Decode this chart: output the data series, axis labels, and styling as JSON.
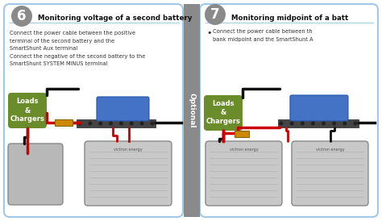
{
  "bg_color": "#FFFFFF",
  "border_color_left": "#A0C8E8",
  "border_color_right": "#A0C8E8",
  "optional_bg": "#8A8A8A",
  "optional_text": "Optional",
  "number6": "6",
  "number7": "7",
  "circle_bg": "#8A8A8A",
  "title6": "Monitoring voltage of a second battery",
  "title7": "Monitoring midpoint of a batt",
  "desc6": [
    "Connect the power cable between the positive",
    "terminal of the second battery and the",
    "SmartShunt Aux terminal",
    "Connect the negative of the second battery to the",
    "SmartShunt SYSTEM MINUS terminal"
  ],
  "desc7_bullet": "•",
  "desc7": [
    "Connect the power cable between th",
    "bank midpoint and the SmartShunt A"
  ],
  "loads_bg": "#6B8C2A",
  "loads_lines": [
    "Loads",
    "&",
    "Chargers"
  ],
  "shunt_body": "#4472C4",
  "shunt_bar": "#444444",
  "shunt_connector": "#CC8800",
  "battery_face": "#C0C0C0",
  "battery_face2": "#D0D0D0",
  "battery_border": "#888888",
  "battery_label_color": "#666666",
  "wire_black": "#111111",
  "wire_red": "#CC0000",
  "fuse_color": "#CC8800",
  "line_sep": "#B0D0E8"
}
